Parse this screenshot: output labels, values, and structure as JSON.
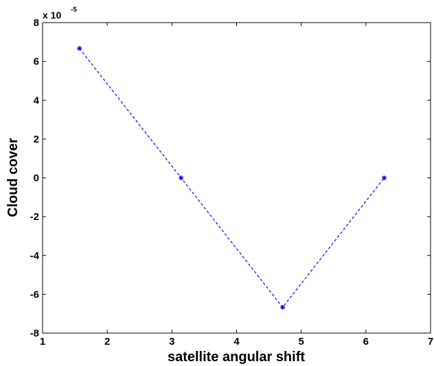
{
  "chart_data": {
    "type": "line",
    "title": "",
    "xlabel": "satellite angular shift",
    "ylabel": "Cloud cover",
    "xlim": [
      1,
      7
    ],
    "ylim": [
      -8,
      8
    ],
    "xticks": [
      1,
      2,
      3,
      4,
      5,
      6,
      7
    ],
    "yticks": [
      -8,
      -6,
      -4,
      -2,
      0,
      2,
      4,
      6,
      8
    ],
    "y_exponent": {
      "base": "x 10",
      "power": "-5"
    },
    "grid": false,
    "series": [
      {
        "x": [
          1.5708,
          3.1416,
          4.7124,
          6.2832
        ],
        "y": [
          6.67,
          0,
          -6.67,
          0
        ],
        "color": "#0000ff",
        "line_style": "dashed",
        "marker": "asterisk"
      }
    ]
  }
}
